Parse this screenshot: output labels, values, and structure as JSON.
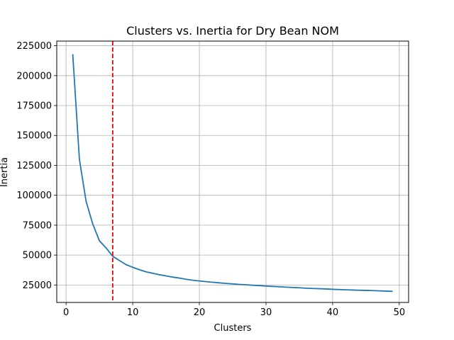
{
  "chart_data": {
    "type": "line",
    "title": "Clusters vs. Inertia for Dry Bean NOM",
    "xlabel": "Clusters",
    "ylabel": "Inertia",
    "xlim": [
      -1.4,
      51.4
    ],
    "ylim": [
      10400,
      228900
    ],
    "xticks": [
      0,
      10,
      20,
      30,
      40,
      50
    ],
    "yticks": [
      25000,
      50000,
      75000,
      100000,
      125000,
      150000,
      175000,
      200000,
      225000
    ],
    "grid": true,
    "legend": "none",
    "series": [
      {
        "color": "#1f77b4",
        "x": [
          1,
          2,
          3,
          4,
          5,
          6,
          7,
          8,
          9,
          10,
          11,
          12,
          13,
          14,
          15,
          16,
          17,
          18,
          19,
          20,
          21,
          22,
          23,
          24,
          25,
          26,
          27,
          28,
          29,
          30,
          31,
          32,
          33,
          34,
          35,
          36,
          37,
          38,
          39,
          40,
          41,
          42,
          43,
          44,
          45,
          46,
          47,
          48,
          49
        ],
        "y": [
          218000,
          130000,
          95000,
          76000,
          62000,
          56000,
          49000,
          45500,
          42000,
          39800,
          37800,
          36000,
          34800,
          33600,
          32600,
          31600,
          30800,
          29800,
          29000,
          28400,
          27800,
          27300,
          26800,
          26300,
          25900,
          25500,
          25200,
          24800,
          24500,
          24100,
          23800,
          23500,
          23200,
          22900,
          22700,
          22300,
          22100,
          21900,
          21700,
          21400,
          21200,
          21000,
          20800,
          20600,
          20500,
          20300,
          20100,
          19900,
          19700
        ]
      }
    ],
    "reference_line": {
      "orientation": "vertical",
      "x": 7,
      "color": "#ff0000",
      "style": "dashed"
    }
  }
}
